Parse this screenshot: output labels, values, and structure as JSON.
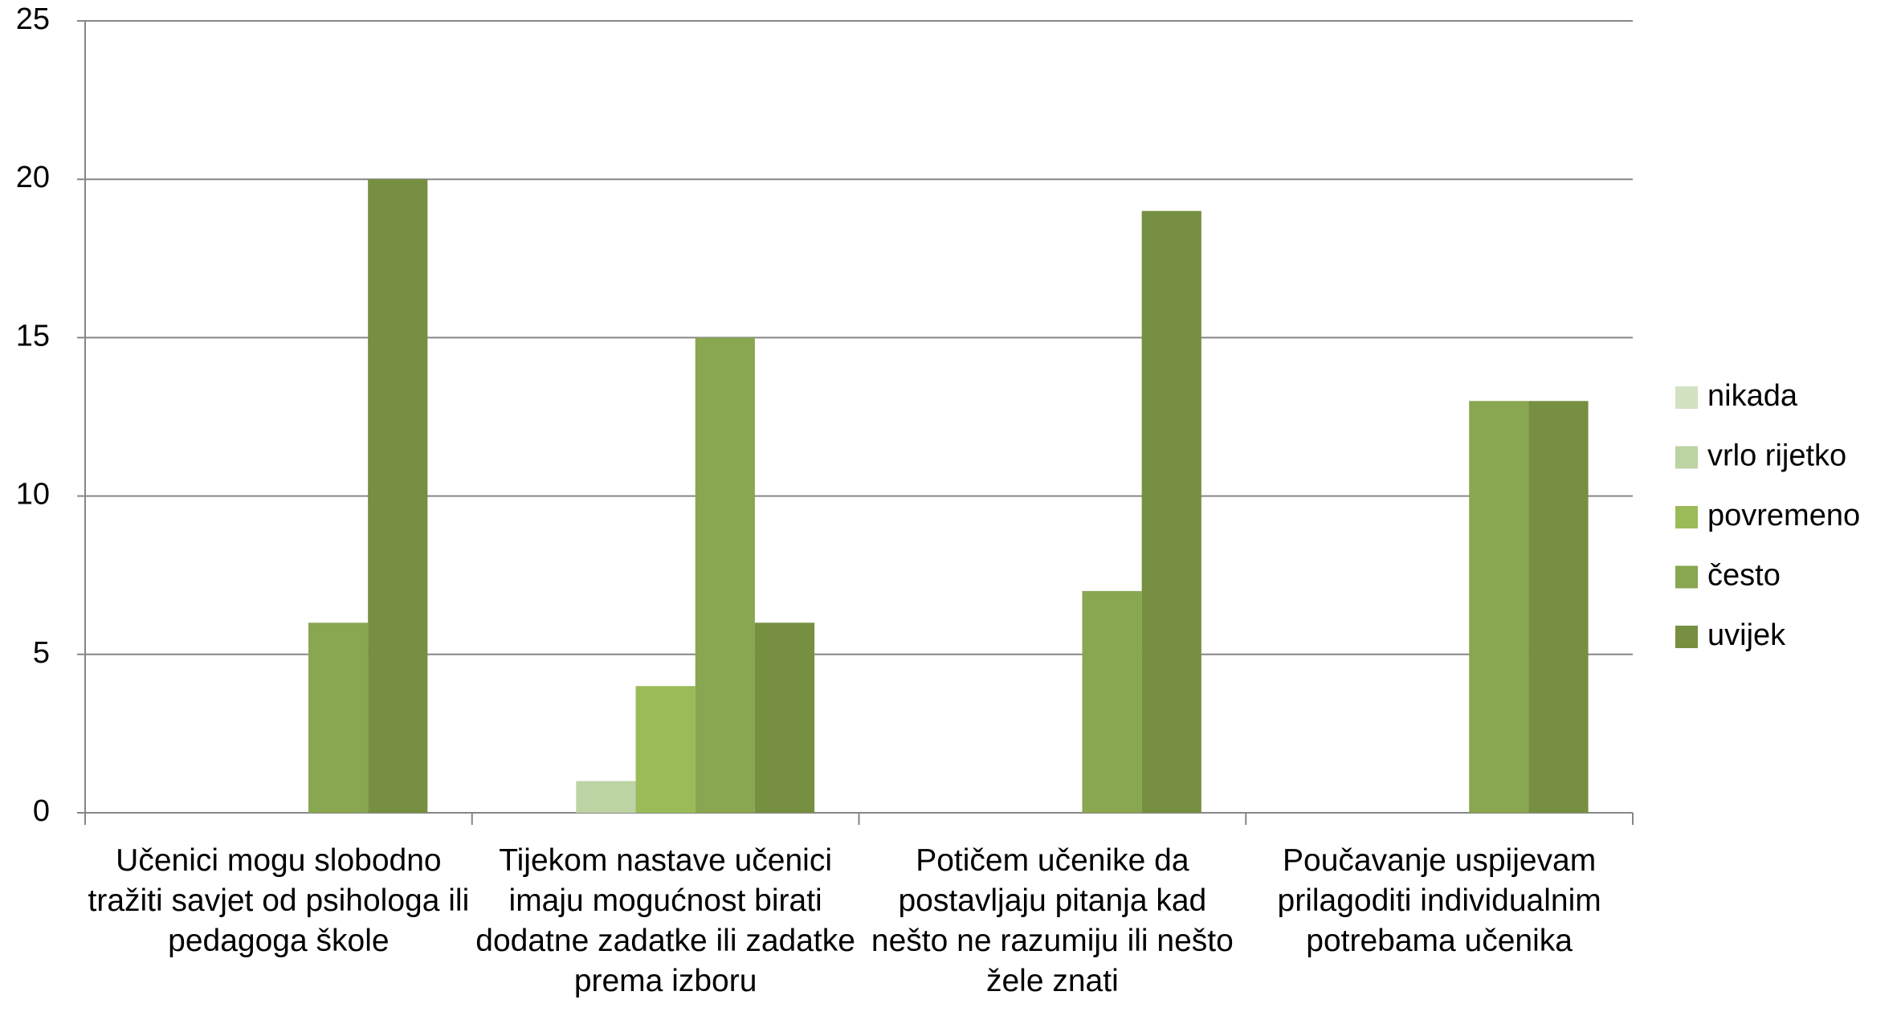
{
  "chart_data": {
    "type": "bar",
    "categories": [
      "Učenici mogu slobodno tražiti savjet od psihologa ili pedagoga škole",
      "Tijekom nastave učenici imaju mogućnost birati dodatne zadatke ili zadatke prema izboru",
      "Potičem učenike da postavljaju pitanja kad nešto ne razumiju ili nešto žele znati",
      "Poučavanje uspijevam prilagoditi individualnim potrebama učenika"
    ],
    "series": [
      {
        "name": "nikada",
        "color": "#d3e2c1",
        "values": [
          0,
          0,
          0,
          0
        ]
      },
      {
        "name": "vrlo rijetko",
        "color": "#bcd3a3",
        "values": [
          0,
          1,
          0,
          0
        ]
      },
      {
        "name": "povremeno",
        "color": "#9bbb59",
        "values": [
          0,
          4,
          0,
          0
        ]
      },
      {
        "name": "često",
        "color": "#89a651",
        "values": [
          6,
          15,
          7,
          13
        ]
      },
      {
        "name": "uvijek",
        "color": "#768f41",
        "values": [
          20,
          6,
          19,
          13
        ]
      }
    ],
    "ylim": [
      0,
      25
    ],
    "yticks": [
      0,
      5,
      10,
      15,
      20,
      25
    ],
    "grid": true,
    "legend": "right"
  }
}
